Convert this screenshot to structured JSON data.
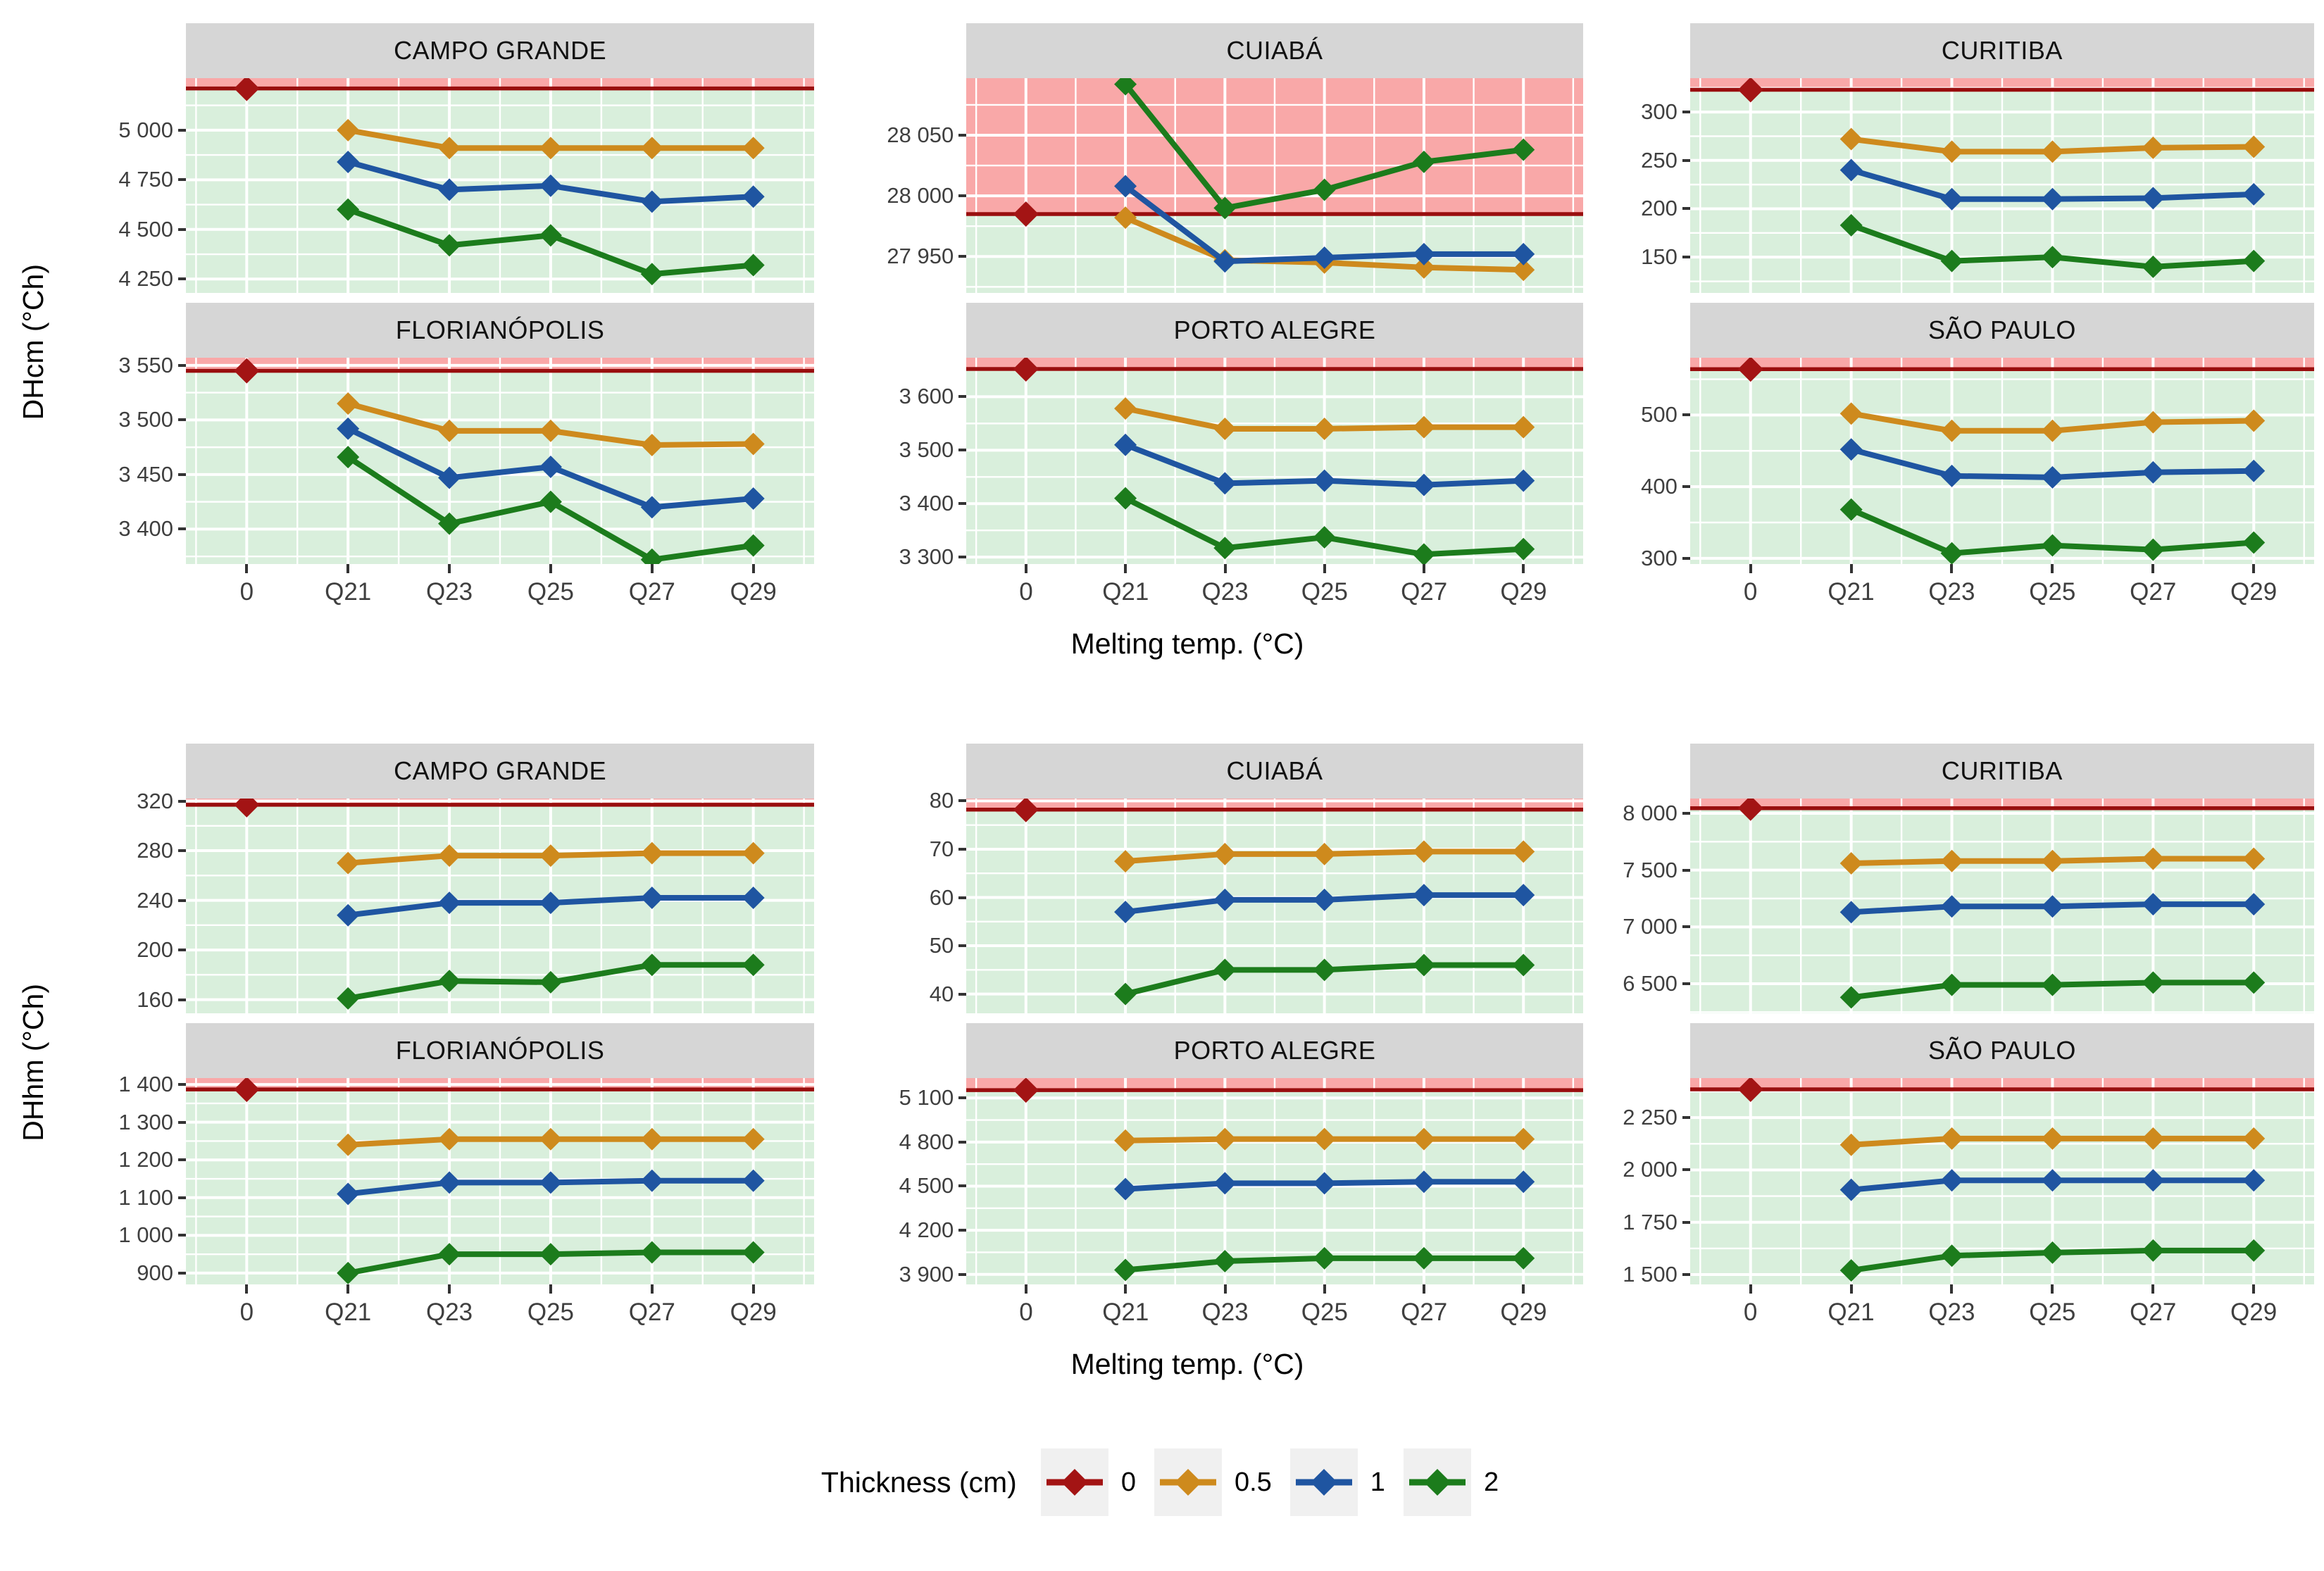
{
  "chart_data": {
    "type": "line",
    "description": "Faceted degree-hour line charts per city vs melting temperature, by PCM thickness",
    "x_categories": [
      "0",
      "Q21",
      "Q23",
      "Q25",
      "Q27",
      "Q29"
    ],
    "series_order": [
      "0.5",
      "1",
      "2"
    ],
    "legend": {
      "title": "Thickness (cm)",
      "items": [
        {
          "label": "0",
          "color": "#A31414"
        },
        {
          "label": "0.5",
          "color": "#CE8A1D"
        },
        {
          "label": "1",
          "color": "#1F55A1"
        },
        {
          "label": "2",
          "color": "#1C7C1C"
        }
      ]
    },
    "colors": {
      "thickness_0": "#A31414",
      "thickness_05": "#CE8A1D",
      "thickness_1": "#1F55A1",
      "thickness_2": "#1C7C1C",
      "ref_line": "#990E0E",
      "zone_above": "#F9A8A8",
      "zone_below": "#D9EFDC",
      "strip_bg": "#D6D6D6",
      "gridline": "#FFFFFF",
      "tick_text": "#3F3F3F"
    },
    "blocks": [
      {
        "ylabel": "DHcm (°Ch)",
        "xlabel": "Melting temp. (°C)",
        "facets": [
          {
            "city": "CAMPO GRANDE",
            "ylim": [
              4180,
              5262
            ],
            "yticks": [
              4250,
              4500,
              4750,
              5000
            ],
            "ref": 5210,
            "thickness0": 5210,
            "series": {
              "0.5": [
                5000,
                4910,
                4910,
                4910,
                4910
              ],
              "1": [
                4840,
                4700,
                4720,
                4640,
                4665
              ],
              "2": [
                4600,
                4420,
                4470,
                4275,
                4320
              ]
            }
          },
          {
            "city": "CUIABÁ",
            "ylim": [
              27920,
              28097
            ],
            "yticks": [
              27950,
              28000,
              28050
            ],
            "ref": 27985,
            "thickness0": 27985,
            "series": {
              "0.5": [
                27982,
                27947,
                27945,
                27941,
                27939
              ],
              "1": [
                28008,
                27946,
                27949,
                27952,
                27952
              ],
              "2": [
                28092,
                27990,
                28005,
                28028,
                28038
              ]
            }
          },
          {
            "city": "CURITIBA",
            "ylim": [
              113,
              335
            ],
            "yticks": [
              150,
              200,
              250,
              300
            ],
            "ref": 323,
            "thickness0": 323,
            "series": {
              "0.5": [
                272,
                259,
                259,
                263,
                264
              ],
              "1": [
                240,
                210,
                210,
                211,
                215
              ],
              "2": [
                183,
                146,
                150,
                140,
                146
              ]
            }
          },
          {
            "city": "FLORIANÓPOLIS",
            "ylim": [
              3368,
              3557
            ],
            "yticks": [
              3400,
              3450,
              3500,
              3550
            ],
            "ref": 3545,
            "thickness0": 3545,
            "series": {
              "0.5": [
                3515,
                3490,
                3490,
                3477,
                3478
              ],
              "1": [
                3492,
                3447,
                3457,
                3420,
                3428
              ],
              "2": [
                3466,
                3405,
                3425,
                3372,
                3385
              ]
            }
          },
          {
            "city": "PORTO ALEGRE",
            "ylim": [
              3287,
              3673
            ],
            "yticks": [
              3300,
              3400,
              3500,
              3600
            ],
            "ref": 3652,
            "thickness0": 3652,
            "series": {
              "0.5": [
                3578,
                3540,
                3540,
                3543,
                3543
              ],
              "1": [
                3510,
                3438,
                3443,
                3435,
                3443
              ],
              "2": [
                3410,
                3317,
                3337,
                3305,
                3315
              ]
            }
          },
          {
            "city": "SÃO PAULO",
            "ylim": [
              292,
              580
            ],
            "yticks": [
              300,
              400,
              500
            ],
            "ref": 564,
            "thickness0": 564,
            "series": {
              "0.5": [
                502,
                478,
                478,
                490,
                492
              ],
              "1": [
                452,
                415,
                413,
                420,
                422
              ],
              "2": [
                368,
                307,
                318,
                312,
                322
              ]
            }
          }
        ]
      },
      {
        "ylabel": "DHhm (°Ch)",
        "xlabel": "Melting temp. (°C)",
        "facets": [
          {
            "city": "CAMPO GRANDE",
            "ylim": [
              149,
              322
            ],
            "yticks": [
              160,
              200,
              240,
              280,
              320
            ],
            "ref": 317,
            "thickness0": 317,
            "series": {
              "0.5": [
                270,
                276,
                276,
                278,
                278
              ],
              "1": [
                228,
                238,
                238,
                242,
                242
              ],
              "2": [
                161,
                175,
                174,
                188,
                188
              ]
            }
          },
          {
            "city": "CUIABÁ",
            "ylim": [
              36,
              80.5
            ],
            "yticks": [
              40,
              50,
              60,
              70,
              80
            ],
            "ref": 78.2,
            "thickness0": 78.2,
            "series": {
              "0.5": [
                67.5,
                69,
                69,
                69.5,
                69.5
              ],
              "1": [
                57,
                59.5,
                59.5,
                60.5,
                60.5
              ],
              "2": [
                40,
                45,
                45,
                46,
                46
              ]
            }
          },
          {
            "city": "CURITIBA",
            "ylim": [
              6240,
              8130
            ],
            "yticks": [
              6500,
              7000,
              7500,
              8000
            ],
            "ref": 8045,
            "thickness0": 8045,
            "series": {
              "0.5": [
                7560,
                7580,
                7580,
                7600,
                7600
              ],
              "1": [
                7130,
                7180,
                7180,
                7200,
                7200
              ],
              "2": [
                6380,
                6490,
                6490,
                6510,
                6510
              ]
            }
          },
          {
            "city": "FLORIANÓPOLIS",
            "ylim": [
              870,
              1417
            ],
            "yticks": [
              900,
              1000,
              1100,
              1200,
              1300,
              1400
            ],
            "ref": 1387,
            "thickness0": 1387,
            "series": {
              "0.5": [
                1240,
                1255,
                1255,
                1255,
                1255
              ],
              "1": [
                1110,
                1140,
                1140,
                1145,
                1145
              ],
              "2": [
                900,
                950,
                950,
                955,
                955
              ]
            }
          },
          {
            "city": "PORTO ALEGRE",
            "ylim": [
              3832,
              5235
            ],
            "yticks": [
              3900,
              4200,
              4500,
              4800,
              5100
            ],
            "ref": 5153,
            "thickness0": 5153,
            "series": {
              "0.5": [
                4810,
                4820,
                4820,
                4820,
                4820
              ],
              "1": [
                4480,
                4520,
                4520,
                4530,
                4530
              ],
              "2": [
                3930,
                3990,
                4010,
                4010,
                4010
              ]
            }
          },
          {
            "city": "SÃO PAULO",
            "ylim": [
              1453,
              2439
            ],
            "yticks": [
              1500,
              1750,
              2000,
              2250
            ],
            "ref": 2385,
            "thickness0": 2385,
            "series": {
              "0.5": [
                2120,
                2150,
                2150,
                2150,
                2150
              ],
              "1": [
                1905,
                1950,
                1950,
                1950,
                1950
              ],
              "2": [
                1520,
                1590,
                1605,
                1615,
                1615
              ]
            }
          }
        ]
      }
    ]
  }
}
